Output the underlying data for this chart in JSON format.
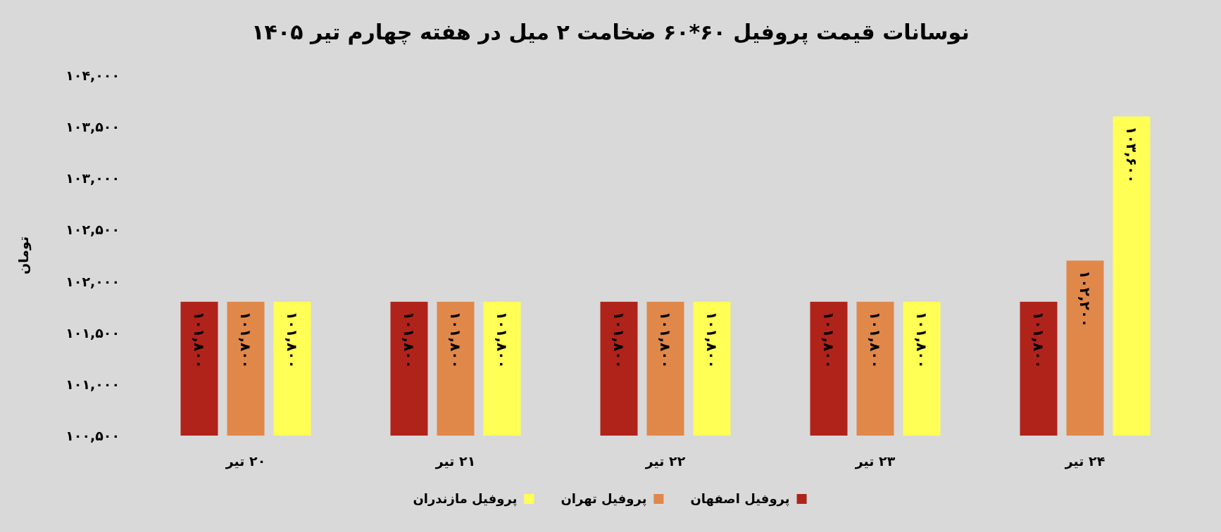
{
  "chart_data": {
    "type": "bar",
    "title": "نوسانات قیمت پروفیل ۶۰*۶۰ ضخامت ۲ میل در هفته چهارم تیر ۱۴۰۵",
    "ylabel": "تومان",
    "categories": [
      "۲۰ تیر",
      "۲۱ تیر",
      "۲۲ تیر",
      "۲۳ تیر",
      "۲۴ تیر"
    ],
    "series": [
      {
        "name": "پروفیل اصفهان",
        "color": "#b0231a",
        "values": [
          101800,
          101800,
          101800,
          101800,
          101800
        ],
        "value_labels": [
          "۱۰۱,۸۰۰",
          "۱۰۱,۸۰۰",
          "۱۰۱,۸۰۰",
          "۱۰۱,۸۰۰",
          "۱۰۱,۸۰۰"
        ]
      },
      {
        "name": "پروفیل تهران",
        "color": "#e0874a",
        "values": [
          101800,
          101800,
          101800,
          101800,
          102200
        ],
        "value_labels": [
          "۱۰۱,۸۰۰",
          "۱۰۱,۸۰۰",
          "۱۰۱,۸۰۰",
          "۱۰۱,۸۰۰",
          "۱۰۲,۲۰۰"
        ]
      },
      {
        "name": "پروفیل مازندران",
        "color": "#ffff55",
        "values": [
          101800,
          101800,
          101800,
          101800,
          103600
        ],
        "value_labels": [
          "۱۰۱,۸۰۰",
          "۱۰۱,۸۰۰",
          "۱۰۱,۸۰۰",
          "۱۰۱,۸۰۰",
          "۱۰۳,۶۰۰"
        ]
      }
    ],
    "ylim": [
      100500,
      104000
    ],
    "yticks": [
      {
        "value": 100500,
        "label": "۱۰۰,۵۰۰"
      },
      {
        "value": 101000,
        "label": "۱۰۱,۰۰۰"
      },
      {
        "value": 101500,
        "label": "۱۰۱,۵۰۰"
      },
      {
        "value": 102000,
        "label": "۱۰۲,۰۰۰"
      },
      {
        "value": 102500,
        "label": "۱۰۲,۵۰۰"
      },
      {
        "value": 103000,
        "label": "۱۰۳,۰۰۰"
      },
      {
        "value": 103500,
        "label": "۱۰۳,۵۰۰"
      },
      {
        "value": 104000,
        "label": "۱۰۴,۰۰۰"
      }
    ],
    "grid": false,
    "legend": "bottom"
  }
}
